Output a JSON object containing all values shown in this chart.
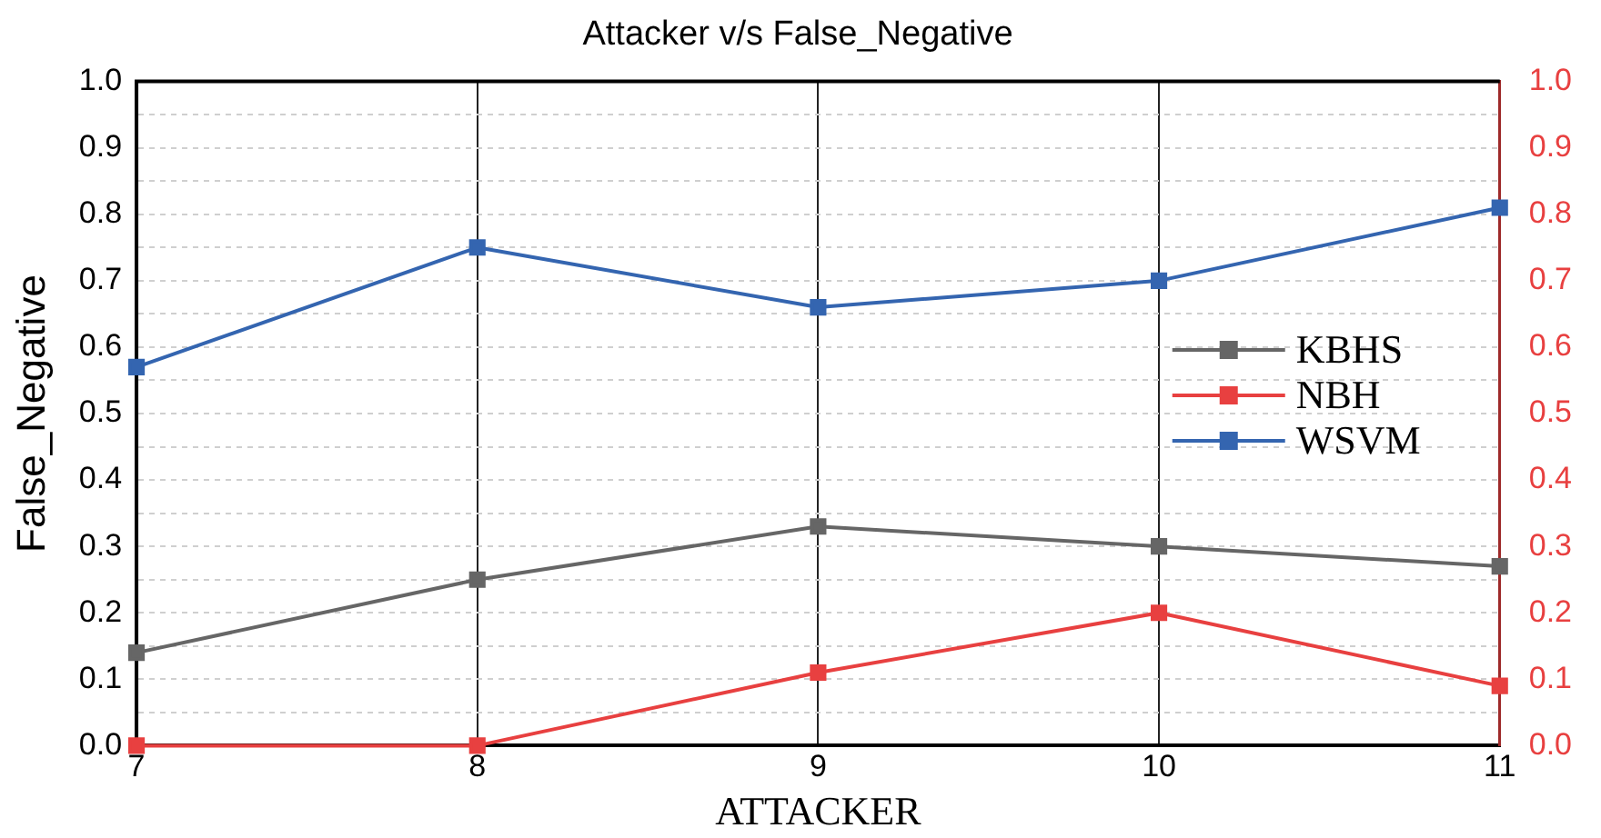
{
  "chart_data": {
    "type": "line",
    "title": "Attacker v/s False_Negative",
    "xlabel": "ATTACKER",
    "ylabel": "False_Negative",
    "x": [
      7,
      8,
      9,
      10,
      11
    ],
    "xlim": [
      7,
      11
    ],
    "xticks": [
      7,
      8,
      9,
      10,
      11
    ],
    "ylim": [
      0,
      1
    ],
    "yticks": [
      {
        "value": 0,
        "label": "0.0"
      },
      {
        "value": 0.05,
        "label": null
      },
      {
        "value": 0.1,
        "label": "0.1"
      },
      {
        "value": 0.15,
        "label": null
      },
      {
        "value": 0.2,
        "label": "0.2"
      },
      {
        "value": 0.25,
        "label": null
      },
      {
        "value": 0.3,
        "label": "0.3"
      },
      {
        "value": 0.35,
        "label": null
      },
      {
        "value": 0.4,
        "label": "0.4"
      },
      {
        "value": 0.45,
        "label": null
      },
      {
        "value": 0.5,
        "label": "0.5"
      },
      {
        "value": 0.55,
        "label": null
      },
      {
        "value": 0.6,
        "label": "0.6"
      },
      {
        "value": 0.65,
        "label": null
      },
      {
        "value": 0.7,
        "label": "0.7"
      },
      {
        "value": 0.75,
        "label": null
      },
      {
        "value": 0.8,
        "label": "0.8"
      },
      {
        "value": 0.85,
        "label": null
      },
      {
        "value": 0.9,
        "label": "0.9"
      },
      {
        "value": 0.95,
        "label": null
      },
      {
        "value": 1,
        "label": "1.0"
      }
    ],
    "y2lim": [
      0,
      1
    ],
    "y2ticks": [
      {
        "value": 0,
        "label": "0.0"
      },
      {
        "value": 0.1,
        "label": "0.1"
      },
      {
        "value": 0.2,
        "label": "0.2"
      },
      {
        "value": 0.3,
        "label": "0.3"
      },
      {
        "value": 0.4,
        "label": "0.4"
      },
      {
        "value": 0.5,
        "label": "0.5"
      },
      {
        "value": 0.6,
        "label": "0.6"
      },
      {
        "value": 0.7,
        "label": "0.7"
      },
      {
        "value": 0.8,
        "label": "0.8"
      },
      {
        "value": 0.9,
        "label": "0.9"
      },
      {
        "value": 1,
        "label": "1.0"
      }
    ],
    "series": [
      {
        "name": "KBHS",
        "color": "#666666",
        "values": [
          0.14,
          0.25,
          0.33,
          0.3,
          0.27
        ]
      },
      {
        "name": "NBH",
        "color": "#e84040",
        "axis": "y2",
        "values": [
          0,
          0,
          0.11,
          0.2,
          0.09
        ]
      },
      {
        "name": "WSVM",
        "color": "#3465b0",
        "values": [
          0.57,
          0.75,
          0.66,
          0.7,
          0.81
        ]
      }
    ],
    "grid": true,
    "legend": "right",
    "marker": "square",
    "line_style": "solid"
  }
}
